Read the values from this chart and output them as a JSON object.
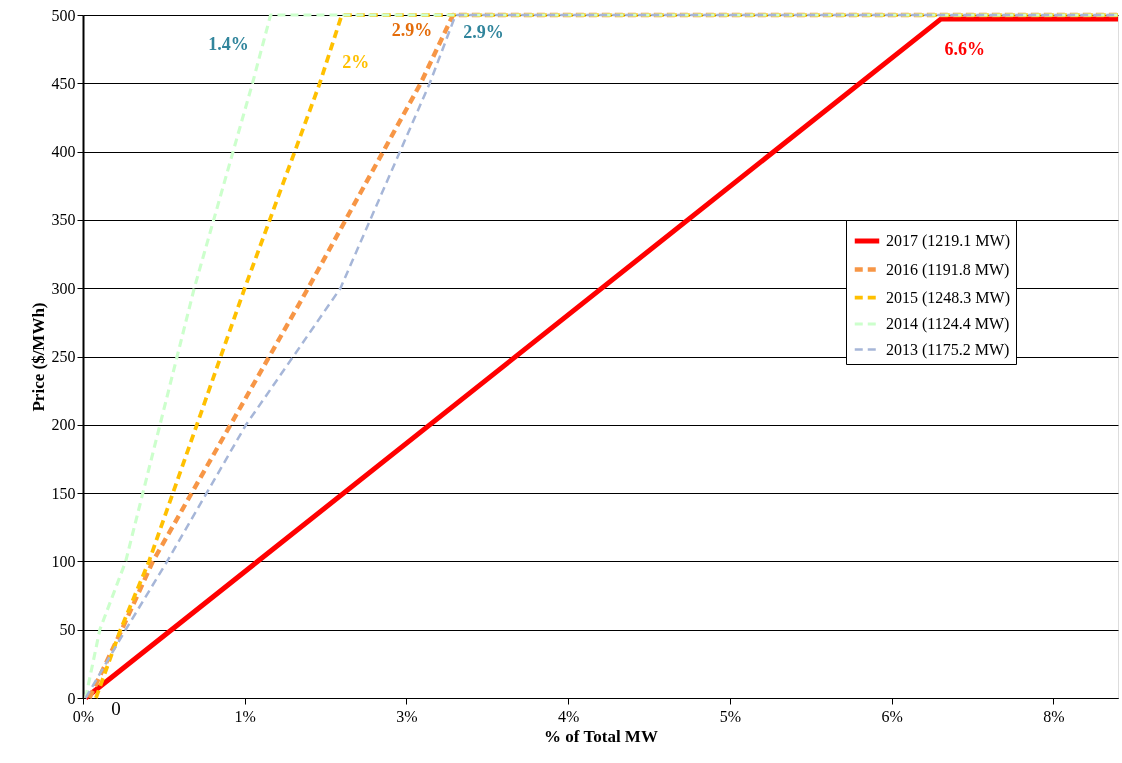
{
  "chart_data": {
    "type": "line",
    "xlabel": "% of Total MW",
    "ylabel": "Price ($/MWh)",
    "xlim": [
      0,
      8
    ],
    "ylim": [
      0,
      500
    ],
    "xticks": [
      {
        "value": 0,
        "label": "0%"
      },
      {
        "value": 1.25,
        "label": "1%"
      },
      {
        "value": 2.5,
        "label": "3%"
      },
      {
        "value": 3.75,
        "label": "4%"
      },
      {
        "value": 5,
        "label": "5%"
      },
      {
        "value": 6.25,
        "label": "6%"
      },
      {
        "value": 7.5,
        "label": "8%"
      }
    ],
    "yticks": [
      0,
      50,
      100,
      150,
      200,
      250,
      300,
      350,
      400,
      450,
      500
    ],
    "grid": "y",
    "legend": "right",
    "marker": "none",
    "series": [
      {
        "name": "2017 (1219.1 MW)",
        "color": "#ff0000",
        "line_style": "solid",
        "x": [
          0.02,
          6.63,
          8
        ],
        "values": [
          0,
          497,
          497
        ]
      },
      {
        "name": "2016 (1191.8 MW)",
        "color": "#f79646",
        "line_style": "dashed",
        "x": [
          0.05,
          0.3,
          0.54,
          1.14,
          1.74,
          2.61,
          2.86,
          8
        ],
        "values": [
          0,
          50,
          100,
          200,
          300,
          450,
          500,
          500
        ]
      },
      {
        "name": "2015 (1248.3 MW)",
        "color": "#ffc000",
        "line_style": "dashed",
        "x": [
          0.1,
          0.29,
          0.51,
          1.25,
          1.83,
          2.0,
          8
        ],
        "values": [
          0,
          50,
          100,
          300,
          450,
          500,
          500
        ]
      },
      {
        "name": "2014 (1124.4 MW)",
        "color": "#ccffcc",
        "line_style": "dashed",
        "x": [
          0.02,
          0.13,
          0.33,
          0.86,
          1.31,
          1.45,
          8
        ],
        "values": [
          0,
          50,
          100,
          300,
          450,
          500,
          500
        ]
      },
      {
        "name": "2013 (1175.2 MW)",
        "color": "#a6b6d8",
        "line_style": "dashed",
        "x": [
          0.02,
          0.33,
          0.65,
          1.26,
          1.99,
          2.68,
          2.88,
          8
        ],
        "values": [
          0,
          50,
          100,
          200,
          300,
          450,
          500,
          500
        ]
      }
    ],
    "annotations": [
      {
        "text": "1.4%",
        "x": 1.45,
        "y": 500
      },
      {
        "text": "2%",
        "x": 2.0,
        "y": 500
      },
      {
        "text": "2.9%",
        "x": 2.86,
        "y": 500
      },
      {
        "text": "2.9%",
        "x": 2.88,
        "y": 500
      },
      {
        "text": "6.6%",
        "x": 6.63,
        "y": 497
      },
      {
        "text": "0",
        "x": 0.1,
        "y": 0
      }
    ]
  }
}
